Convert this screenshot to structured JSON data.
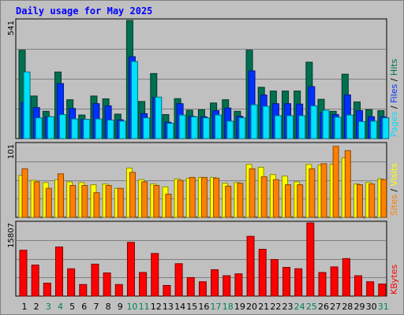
{
  "title": "Daily usage for May 2025",
  "chart_data": [
    {
      "type": "bar",
      "panel": "pages-files-hits",
      "ymax_label": "541",
      "ylim": [
        0,
        541
      ],
      "categories": [
        "1",
        "2",
        "3",
        "4",
        "5",
        "6",
        "7",
        "8",
        "9",
        "10",
        "11",
        "12",
        "13",
        "14",
        "15",
        "16",
        "17",
        "18",
        "19",
        "20",
        "21",
        "22",
        "23",
        "24",
        "25",
        "26",
        "27",
        "28",
        "29",
        "30",
        "31"
      ],
      "weekend_days": [
        "3",
        "4",
        "10",
        "11",
        "17",
        "18",
        "24",
        "25",
        "31"
      ],
      "legend": [
        "Pages",
        "Files",
        "Hits"
      ],
      "series": [
        {
          "name": "Hits",
          "color": "#007050",
          "values": [
            405,
            195,
            125,
            305,
            178,
            108,
            195,
            182,
            112,
            541,
            170,
            298,
            110,
            183,
            130,
            132,
            163,
            178,
            125,
            405,
            235,
            218,
            218,
            218,
            350,
            180,
            125,
            295,
            168,
            133,
            128
          ]
        },
        {
          "name": "Files",
          "color": "#0030ff",
          "values": [
            165,
            142,
            100,
            252,
            138,
            88,
            160,
            150,
            86,
            375,
            114,
            188,
            75,
            160,
            102,
            100,
            128,
            140,
            102,
            310,
            200,
            160,
            160,
            158,
            238,
            118,
            110,
            200,
            128,
            100,
            100
          ]
        },
        {
          "name": "Pages",
          "color": "#00e0ff",
          "values": [
            305,
            95,
            100,
            110,
            90,
            88,
            90,
            85,
            80,
            353,
            95,
            190,
            70,
            108,
            100,
            95,
            108,
            80,
            95,
            155,
            148,
            105,
            105,
            105,
            150,
            130,
            98,
            108,
            78,
            80,
            95
          ]
        }
      ]
    },
    {
      "type": "bar",
      "panel": "visits-sites",
      "ymax_label": "101",
      "ylim": [
        0,
        101
      ],
      "categories": [
        "1",
        "2",
        "3",
        "4",
        "5",
        "6",
        "7",
        "8",
        "9",
        "10",
        "11",
        "12",
        "13",
        "14",
        "15",
        "16",
        "17",
        "18",
        "19",
        "20",
        "21",
        "22",
        "23",
        "24",
        "25",
        "26",
        "27",
        "28",
        "29",
        "30",
        "31"
      ],
      "legend": [
        "Sites",
        "Visits"
      ],
      "series": [
        {
          "name": "Visits",
          "color": "#ffff00",
          "values": [
            58,
            51,
            48,
            52,
            49,
            48,
            45,
            46,
            40,
            68,
            52,
            46,
            42,
            53,
            54,
            55,
            55,
            47,
            48,
            73,
            69,
            59,
            57,
            49,
            73,
            72,
            73,
            82,
            46,
            48,
            53
          ]
        },
        {
          "name": "Sites",
          "color": "#ff8000",
          "values": [
            67,
            49,
            40,
            60,
            44,
            44,
            34,
            44,
            40,
            62,
            49,
            44,
            32,
            51,
            55,
            55,
            54,
            43,
            47,
            67,
            56,
            52,
            45,
            45,
            67,
            74,
            98,
            92,
            45,
            46,
            52
          ]
        }
      ]
    },
    {
      "type": "bar",
      "panel": "kbytes",
      "ymax_label": "15807",
      "ylim": [
        0,
        15807
      ],
      "categories": [
        "1",
        "2",
        "3",
        "4",
        "5",
        "6",
        "7",
        "8",
        "9",
        "10",
        "11",
        "12",
        "13",
        "14",
        "15",
        "16",
        "17",
        "18",
        "19",
        "20",
        "21",
        "22",
        "23",
        "24",
        "25",
        "26",
        "27",
        "28",
        "29",
        "30",
        "31"
      ],
      "legend": [
        "KBytes"
      ],
      "series": [
        {
          "name": "KBytes",
          "color": "#ff0000",
          "values": [
            9900,
            6700,
            2800,
            10600,
            5900,
            2500,
            6900,
            5000,
            2500,
            11600,
            5100,
            9200,
            2300,
            7000,
            4000,
            3100,
            5700,
            4400,
            4800,
            12900,
            10100,
            7900,
            6200,
            5900,
            15807,
            5100,
            6300,
            8100,
            4400,
            3100,
            2600
          ]
        }
      ]
    }
  ]
}
